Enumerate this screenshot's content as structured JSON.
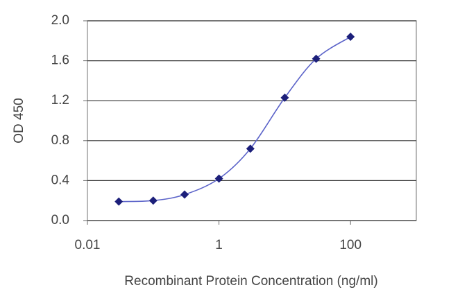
{
  "chart_data": {
    "type": "line",
    "xlabel": "Recombinant Protein Concentration (ng/ml)",
    "ylabel": "OD 450",
    "x": [
      0.03,
      0.1,
      0.3,
      1,
      3,
      10,
      30,
      100
    ],
    "series": [
      {
        "color": "#1c1f7a",
        "line_color": "#5b63c9",
        "values": [
          0.19,
          0.2,
          0.26,
          0.42,
          0.72,
          1.23,
          1.62,
          1.84
        ]
      }
    ],
    "xscale": "log",
    "xlim": [
      0.01,
      1000
    ],
    "xticks": [
      0.01,
      1,
      100
    ],
    "ylim": [
      0,
      2
    ],
    "yticks": [
      {
        "value": 0,
        "label": "0.0"
      },
      {
        "value": 0.4,
        "label": "0.4"
      },
      {
        "value": 0.8,
        "label": "0.8"
      },
      {
        "value": 1.2,
        "label": "1.2"
      },
      {
        "value": 1.6,
        "label": "1.6"
      },
      {
        "value": 2,
        "label": "2.0"
      }
    ],
    "grid": true
  }
}
